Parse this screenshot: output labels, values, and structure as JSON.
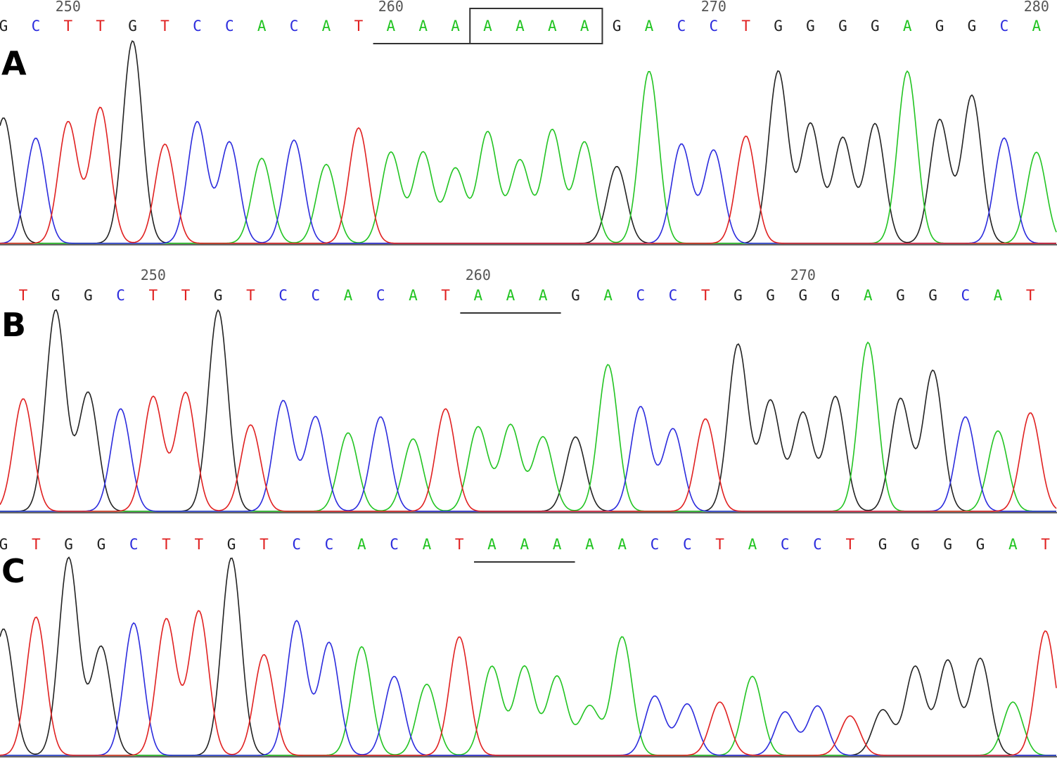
{
  "colors": {
    "A": "#22c422",
    "C": "#2b2bdd",
    "G": "#222222",
    "T": "#e02020"
  },
  "panels": [
    {
      "label": "A",
      "sequence": "GCTTGTCCACATAAAAAAAGACCTGGGGAGGCA",
      "position_labels": [
        "250",
        "260",
        "270",
        "280"
      ],
      "underlined_bases": "AAA",
      "boxed_bases": "AAAA"
    },
    {
      "label": "B",
      "sequence": "TGGCTTGTCCACATAAAGACCTGGGGAGGCAT",
      "position_labels": [
        "250",
        "260",
        "270"
      ],
      "underlined_bases": "AAA"
    },
    {
      "label": "C",
      "sequence": "GTGGCTTGTCCACATAAAAACCTACCTGGGGAT",
      "position_labels": [],
      "underlined_bases": "AAA"
    }
  ]
}
